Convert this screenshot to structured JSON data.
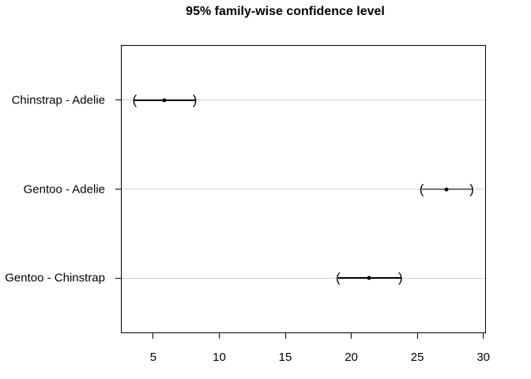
{
  "chart_data": {
    "type": "interval",
    "title": "95% family-wise confidence level",
    "comparisons": [
      {
        "label": "Chinstrap - Adelie",
        "diff": 5.87,
        "lwr": 3.59,
        "upr": 8.15
      },
      {
        "label": "Gentoo - Adelie",
        "diff": 27.23,
        "lwr": 25.33,
        "upr": 29.13
      },
      {
        "label": "Gentoo - Chinstrap",
        "diff": 21.36,
        "lwr": 19.0,
        "upr": 23.73
      }
    ],
    "x_tick_values": [
      5,
      10,
      15,
      20,
      25,
      30
    ],
    "x_tick_labels": [
      "5",
      "10",
      "15",
      "20",
      "25",
      "30"
    ],
    "xlabel": "",
    "ylabel": "",
    "xlim": [
      2.55,
      30.2
    ],
    "ylim": [
      0.38,
      3.62
    ],
    "grid": true,
    "legend": "none",
    "interval_caps": [
      "(",
      ")"
    ],
    "colors": {
      "interval": "#000000",
      "point": "#000000",
      "gridline": "#d3d3d3",
      "border": "#000000",
      "background": "#ffffff"
    }
  }
}
